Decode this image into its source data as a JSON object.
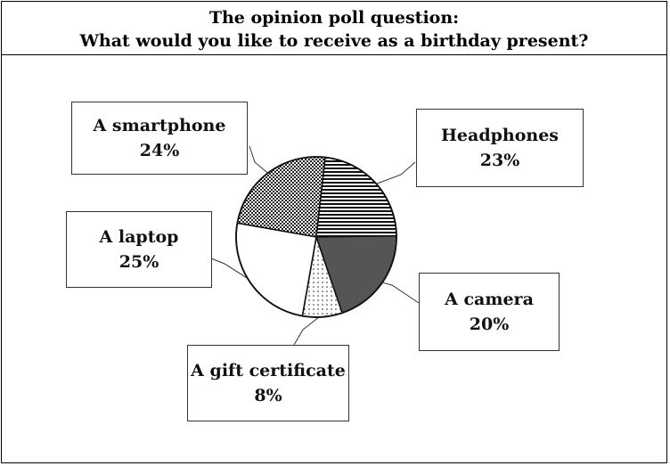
{
  "header": {
    "line1": "The opinion poll question:",
    "line2": "What would you like to receive as a birthday present?"
  },
  "chart_data": {
    "type": "pie",
    "title": "The opinion poll question: What would you like to receive as a birthday present?",
    "slices": [
      {
        "label": "A smartphone",
        "value": 24,
        "value_text": "24%",
        "fill": "crosshatch"
      },
      {
        "label": "Headphones",
        "value": 23,
        "value_text": "23%",
        "fill": "horizontal-stripes"
      },
      {
        "label": "A camera",
        "value": 20,
        "value_text": "20%",
        "fill": "#555555"
      },
      {
        "label": "A gift certificate",
        "value": 8,
        "value_text": "8%",
        "fill": "dots"
      },
      {
        "label": "A laptop",
        "value": 25,
        "value_text": "25%",
        "fill": "#ffffff"
      }
    ]
  }
}
